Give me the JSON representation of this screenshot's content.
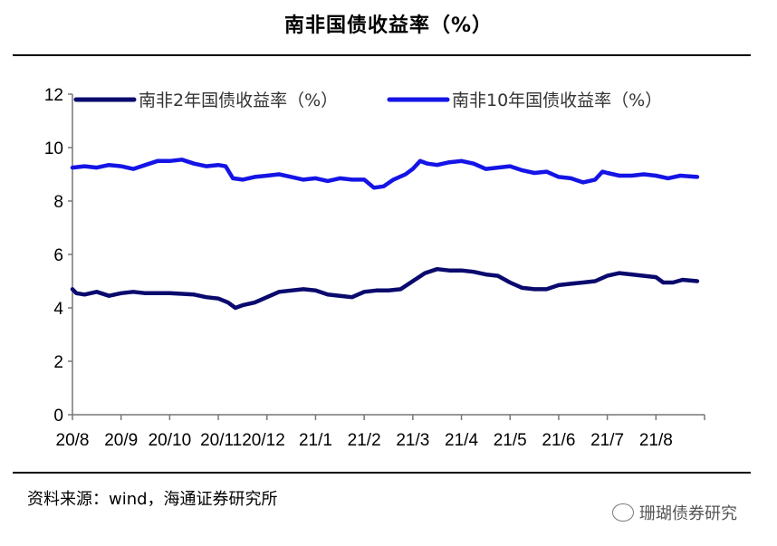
{
  "title": "南非国债收益率（%）",
  "source": "资料来源：wind，海通证券研究所",
  "watermark": "珊瑚债券研究",
  "chart_data": {
    "type": "line",
    "x": [
      "20/8",
      "20/9",
      "20/10",
      "20/11",
      "20/12",
      "21/1",
      "21/2",
      "21/3",
      "21/4",
      "21/5",
      "21/6",
      "21/7",
      "21/8"
    ],
    "x_ticks": [
      "20/8",
      "20/9",
      "20/10",
      "20/1120/12",
      "21/1",
      "21/2",
      "21/3",
      "21/4",
      "21/5",
      "21/6",
      "21/7",
      "21/8"
    ],
    "ylim": [
      0,
      12
    ],
    "yticks": [
      "0",
      "2",
      "4",
      "6",
      "8",
      "10",
      "12"
    ],
    "legend": "top",
    "grid": false,
    "series": [
      {
        "name": "南非2年国债收益率（%）",
        "color": "#0a0a6e",
        "points": [
          [
            0,
            4.7
          ],
          [
            0.08,
            4.55
          ],
          [
            0.25,
            4.5
          ],
          [
            0.5,
            4.6
          ],
          [
            0.75,
            4.45
          ],
          [
            1.0,
            4.55
          ],
          [
            1.25,
            4.6
          ],
          [
            1.5,
            4.55
          ],
          [
            2.0,
            4.55
          ],
          [
            2.5,
            4.5
          ],
          [
            2.75,
            4.4
          ],
          [
            3.0,
            4.35
          ],
          [
            3.2,
            4.2
          ],
          [
            3.35,
            4.0
          ],
          [
            3.5,
            4.1
          ],
          [
            3.75,
            4.2
          ],
          [
            4.0,
            4.4
          ],
          [
            4.25,
            4.6
          ],
          [
            4.5,
            4.65
          ],
          [
            4.75,
            4.7
          ],
          [
            5.0,
            4.65
          ],
          [
            5.25,
            4.5
          ],
          [
            5.5,
            4.45
          ],
          [
            5.75,
            4.4
          ],
          [
            6.0,
            4.6
          ],
          [
            6.25,
            4.65
          ],
          [
            6.5,
            4.65
          ],
          [
            6.75,
            4.7
          ],
          [
            7.0,
            5.0
          ],
          [
            7.25,
            5.3
          ],
          [
            7.5,
            5.45
          ],
          [
            7.75,
            5.4
          ],
          [
            8.0,
            5.4
          ],
          [
            8.25,
            5.35
          ],
          [
            8.5,
            5.25
          ],
          [
            8.75,
            5.2
          ],
          [
            9.0,
            4.95
          ],
          [
            9.25,
            4.75
          ],
          [
            9.5,
            4.7
          ],
          [
            9.75,
            4.7
          ],
          [
            10.0,
            4.85
          ],
          [
            10.25,
            4.9
          ],
          [
            10.5,
            4.95
          ],
          [
            10.75,
            5.0
          ],
          [
            11.0,
            5.2
          ],
          [
            11.25,
            5.3
          ],
          [
            11.5,
            5.25
          ],
          [
            11.75,
            5.2
          ],
          [
            12.0,
            5.15
          ],
          [
            12.15,
            4.95
          ],
          [
            12.35,
            4.95
          ],
          [
            12.55,
            5.05
          ],
          [
            12.85,
            5.0
          ]
        ]
      },
      {
        "name": "南非10年国债收益率（%）",
        "color": "#1414e6",
        "points": [
          [
            0,
            9.25
          ],
          [
            0.25,
            9.3
          ],
          [
            0.5,
            9.25
          ],
          [
            0.75,
            9.35
          ],
          [
            1.0,
            9.3
          ],
          [
            1.25,
            9.2
          ],
          [
            1.5,
            9.35
          ],
          [
            1.75,
            9.5
          ],
          [
            2.0,
            9.5
          ],
          [
            2.25,
            9.55
          ],
          [
            2.5,
            9.4
          ],
          [
            2.75,
            9.3
          ],
          [
            3.0,
            9.35
          ],
          [
            3.15,
            9.3
          ],
          [
            3.3,
            8.85
          ],
          [
            3.5,
            8.8
          ],
          [
            3.75,
            8.9
          ],
          [
            4.0,
            8.95
          ],
          [
            4.25,
            9.0
          ],
          [
            4.5,
            8.9
          ],
          [
            4.75,
            8.8
          ],
          [
            5.0,
            8.85
          ],
          [
            5.25,
            8.75
          ],
          [
            5.5,
            8.85
          ],
          [
            5.75,
            8.8
          ],
          [
            6.0,
            8.8
          ],
          [
            6.2,
            8.5
          ],
          [
            6.4,
            8.55
          ],
          [
            6.6,
            8.8
          ],
          [
            6.85,
            9.0
          ],
          [
            7.0,
            9.2
          ],
          [
            7.15,
            9.5
          ],
          [
            7.3,
            9.4
          ],
          [
            7.5,
            9.35
          ],
          [
            7.75,
            9.45
          ],
          [
            8.0,
            9.5
          ],
          [
            8.25,
            9.4
          ],
          [
            8.5,
            9.2
          ],
          [
            8.75,
            9.25
          ],
          [
            9.0,
            9.3
          ],
          [
            9.25,
            9.15
          ],
          [
            9.5,
            9.05
          ],
          [
            9.75,
            9.1
          ],
          [
            10.0,
            8.9
          ],
          [
            10.25,
            8.85
          ],
          [
            10.5,
            8.7
          ],
          [
            10.75,
            8.8
          ],
          [
            10.9,
            9.1
          ],
          [
            11.0,
            9.05
          ],
          [
            11.25,
            8.95
          ],
          [
            11.5,
            8.95
          ],
          [
            11.75,
            9.0
          ],
          [
            12.0,
            8.95
          ],
          [
            12.25,
            8.85
          ],
          [
            12.5,
            8.95
          ],
          [
            12.85,
            8.9
          ]
        ]
      }
    ]
  }
}
